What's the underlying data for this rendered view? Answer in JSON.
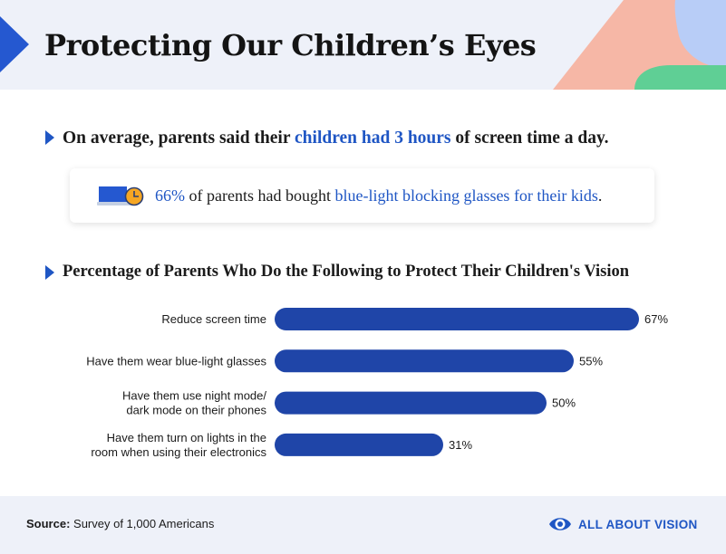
{
  "header": {
    "title": "Protecting Our Children’s Eyes"
  },
  "stat": {
    "prefix": "On average, parents said their ",
    "highlight": "children had 3 hours",
    "suffix": " of screen time a day."
  },
  "card": {
    "percent": "66%",
    "middle": " of parents had bought ",
    "highlight": "blue-light blocking glasses for their kids",
    "end": "."
  },
  "chart_title": "Percentage of Parents Who Do the Following to Protect Their Children's Vision",
  "chart_data": {
    "type": "bar",
    "orientation": "horizontal",
    "title": "Percentage of Parents Who Do the Following to Protect Their Children's Vision",
    "categories": [
      [
        "Reduce screen time"
      ],
      [
        "Have them wear blue-light glasses"
      ],
      [
        "Have them use night mode/",
        "dark mode on their phones"
      ],
      [
        "Have them turn on lights in the",
        "room when using their electronics"
      ]
    ],
    "values": [
      67,
      55,
      50,
      31
    ],
    "value_labels": [
      "67%",
      "55%",
      "50%",
      "31%"
    ],
    "unit": "%",
    "xlim": [
      0,
      100
    ],
    "bar_color": "#1f45a8"
  },
  "footer": {
    "source_label": "Source:",
    "source_text": " Survey of 1,000 Americans",
    "brand": "ALL ABOUT VISION"
  },
  "colors": {
    "accent": "#1f56c4",
    "bar": "#1f45a8",
    "header_bg": "#eef1f9",
    "deco_blue": "#b8cdf7",
    "deco_pink": "#f6b7a6",
    "deco_green": "#5fcf95",
    "clock_orange": "#f5a623"
  }
}
